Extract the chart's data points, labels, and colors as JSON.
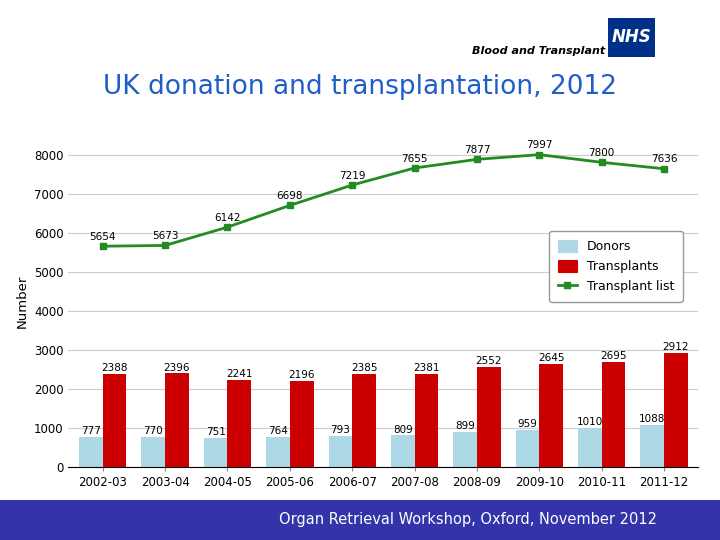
{
  "title": "UK donation and transplantation, 2012",
  "title_color": "#1F5DC8",
  "title_fontsize": 19,
  "categories": [
    "2002-03",
    "2003-04",
    "2004-05",
    "2005-06",
    "2006-07",
    "2007-08",
    "2008-09",
    "2009-10",
    "2010-11",
    "2011-12"
  ],
  "donors": [
    777,
    770,
    751,
    764,
    793,
    809,
    899,
    959,
    1010,
    1088
  ],
  "transplants": [
    2388,
    2396,
    2241,
    2196,
    2385,
    2381,
    2552,
    2645,
    2695,
    2912
  ],
  "transplant_list": [
    5654,
    5673,
    6142,
    6698,
    7219,
    7655,
    7877,
    7997,
    7800,
    7636
  ],
  "donors_color": "#ADD8E6",
  "transplants_color": "#CC0000",
  "transplant_list_color": "#228B22",
  "bar_width": 0.38,
  "ylim": [
    0,
    8500
  ],
  "yticks": [
    0,
    1000,
    2000,
    3000,
    4000,
    5000,
    6000,
    7000,
    8000
  ],
  "ylabel": "Number",
  "legend_labels": [
    "Donors",
    "Transplants",
    "Transplant list"
  ],
  "footer_text": "Organ Retrieval Workshop, Oxford, November 2012",
  "footer_bg": "#3333AA",
  "footer_text_color": "#FFFFFF",
  "nhs_logo_text": "NHS",
  "nhs_logo_bg": "#003087",
  "subtitle_logo": "Blood and Transplant",
  "background_color": "#FFFFFF",
  "plot_bg_color": "#FFFFFF",
  "grid_color": "#CCCCCC",
  "label_fontsize": 7.5
}
